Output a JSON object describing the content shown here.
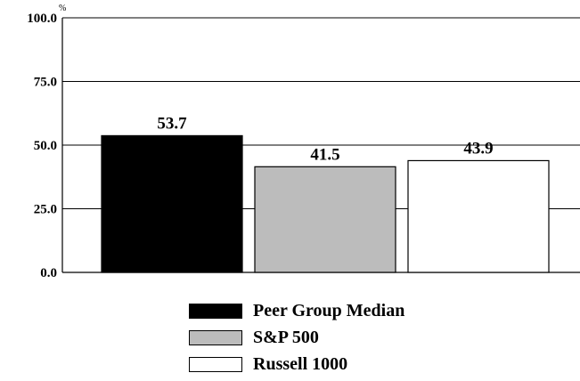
{
  "chart_data": {
    "type": "bar",
    "categories": [
      "Peer Group Median",
      "S&P 500",
      "Russell 1000"
    ],
    "series": [
      {
        "name": "Peer Group Median",
        "value": 53.7,
        "color": "#000000"
      },
      {
        "name": "S&P 500",
        "value": 41.5,
        "color": "#bcbcbc"
      },
      {
        "name": "Russell 1000",
        "value": 43.9,
        "color": "#ffffff"
      }
    ],
    "values": [
      53.7,
      41.5,
      43.9
    ],
    "data_labels": [
      "53.7",
      "41.5",
      "43.9"
    ],
    "yticks": [
      "100.0",
      "75.0",
      "50.0",
      "25.0",
      "0.0"
    ],
    "ytick_values": [
      100,
      75,
      50,
      25,
      0
    ],
    "yunit": "%",
    "ylim": [
      0,
      100
    ],
    "grid": true,
    "legend_position": "bottom"
  },
  "legend": {
    "items": [
      {
        "label": "Peer Group Median",
        "color": "#000000"
      },
      {
        "label": "S&P 500",
        "color": "#bcbcbc"
      },
      {
        "label": "Russell 1000",
        "color": "#ffffff"
      }
    ]
  }
}
